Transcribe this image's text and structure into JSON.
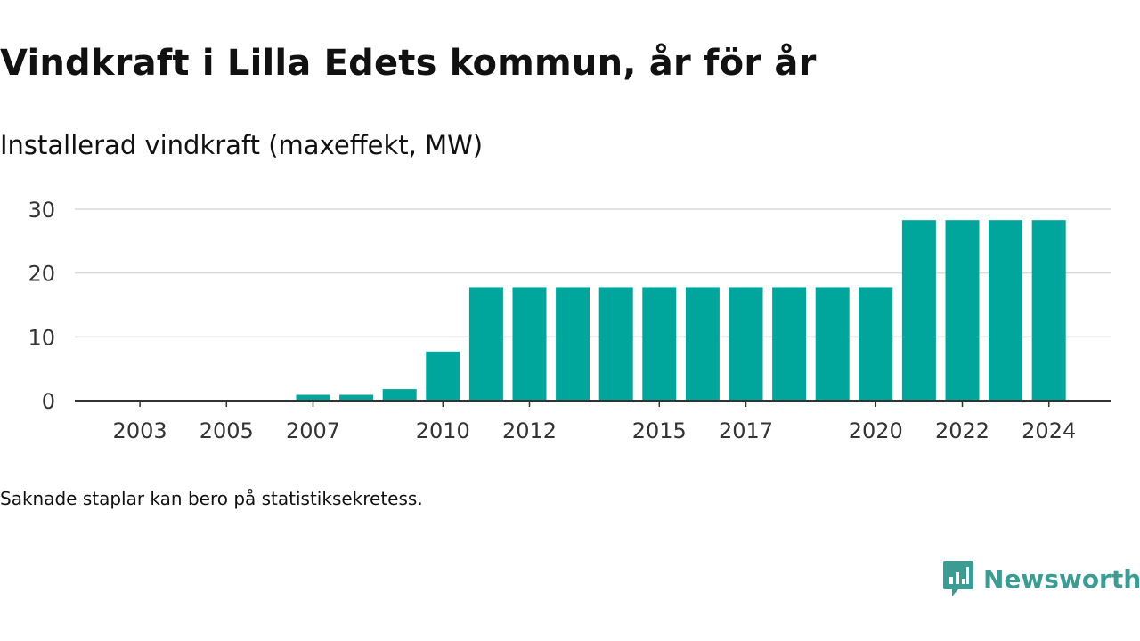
{
  "title": "Vindkraft i Lilla Edets kommun, år för år",
  "subtitle": "Installerad vindkraft (maxeffekt, MW)",
  "note": "Saknade staplar kan bero på statistiksekretess.",
  "brand": {
    "name": "Newsworthy",
    "logo_icon": "newsworthy-chart-bubble-icon"
  },
  "colors": {
    "bar": "#00a59b",
    "grid": "#d9d9d9",
    "axis": "#333333",
    "brand": "#3c9c93"
  },
  "chart_data": {
    "type": "bar",
    "title": "Vindkraft i Lilla Edets kommun, år för år",
    "subtitle": "Installerad vindkraft (maxeffekt, MW)",
    "xlabel": "",
    "ylabel": "",
    "categories": [
      "2002",
      "2003",
      "2004",
      "2005",
      "2006",
      "2007",
      "2008",
      "2009",
      "2010",
      "2011",
      "2012",
      "2013",
      "2014",
      "2015",
      "2016",
      "2017",
      "2018",
      "2019",
      "2020",
      "2021",
      "2022",
      "2023",
      "2024"
    ],
    "values": [
      0,
      0,
      0,
      0,
      0,
      0.9,
      0.9,
      1.8,
      7.7,
      17.8,
      17.8,
      17.8,
      17.8,
      17.8,
      17.8,
      17.8,
      17.8,
      17.8,
      17.8,
      28.3,
      28.3,
      28.3,
      28.3
    ],
    "x_tick_labels": [
      "2003",
      "2005",
      "2007",
      "2010",
      "2012",
      "2015",
      "2017",
      "2020",
      "2022",
      "2024"
    ],
    "y_ticks": [
      0,
      10,
      20,
      30
    ],
    "ylim": [
      0,
      30
    ],
    "grid": true,
    "legend": "none"
  }
}
